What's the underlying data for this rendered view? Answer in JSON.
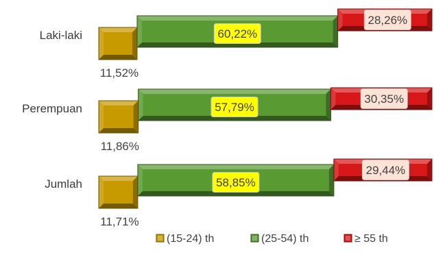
{
  "chart_data": {
    "type": "bar",
    "orientation": "horizontal",
    "stacked": true,
    "percent_stacked": true,
    "categories": [
      "Laki-laki",
      "Perempuan",
      "Jumlah"
    ],
    "series": [
      {
        "name": "(15-24) th",
        "color": "#c79a00",
        "values": [
          11.52,
          11.86,
          11.71
        ],
        "labels": [
          "11,52%",
          "11,86%",
          "11,71%"
        ]
      },
      {
        "name": "(25-54) th",
        "color": "#5a9a33",
        "values": [
          60.22,
          57.79,
          58.85
        ],
        "labels": [
          "60,22%",
          "57,79%",
          "58,85%"
        ]
      },
      {
        "name": "≥ 55 th",
        "color": "#d81818",
        "values": [
          28.26,
          30.35,
          29.44
        ],
        "labels": [
          "28,26%",
          "30,35%",
          "29,44%"
        ]
      }
    ],
    "xlim": [
      0,
      100
    ],
    "grid": false,
    "legend": "bottom-right",
    "label_colors": {
      "middle_label_bg": "#ffff00",
      "right_label_bg": "#fde3d6"
    }
  }
}
